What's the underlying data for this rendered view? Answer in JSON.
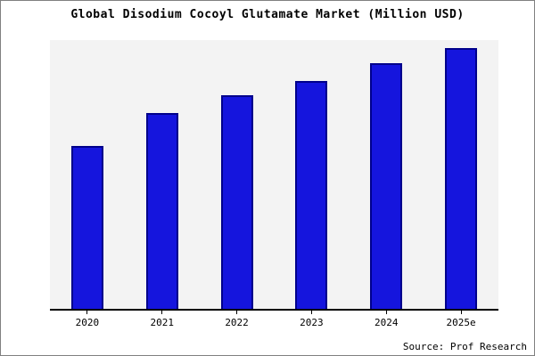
{
  "chart_data": {
    "type": "bar",
    "title": "Global Disodium Cocoyl Glutamate Market (Million USD)",
    "categories": [
      "2020",
      "2021",
      "2022",
      "2023",
      "2024",
      "2025e"
    ],
    "values": [
      100,
      120,
      131,
      140,
      151,
      160
    ],
    "xlabel": "",
    "ylabel": "",
    "ylim": [
      0,
      165
    ],
    "grid": false,
    "legend": "none",
    "bar_color": "#1515dd",
    "bar_edge_color": "#00008b",
    "plot_background": "#f3f3f3"
  },
  "source": "Source: Prof Research"
}
